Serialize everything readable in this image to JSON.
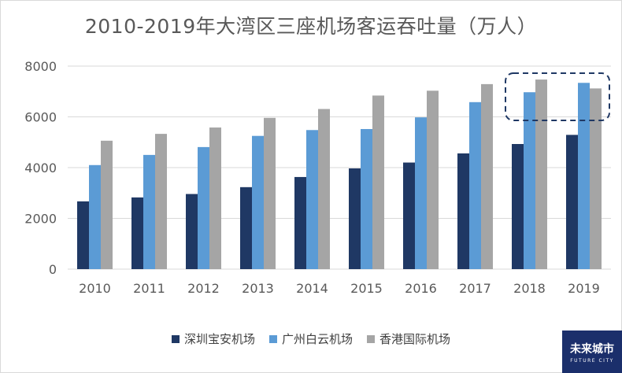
{
  "title": "2010-2019年大湾区三座机场客运吞吐量（万人）",
  "logo": {
    "text": "未来城市",
    "subtext": "FUTURE CITY"
  },
  "colors": {
    "series1": "#1f3864",
    "series2": "#5b9bd5",
    "series3": "#a5a5a5",
    "grid": "#d9d9d9",
    "highlight": "#1f3864"
  },
  "chart_data": {
    "type": "bar",
    "title": "2010-2019年大湾区三座机场客运吞吐量（万人）",
    "xlabel": "",
    "ylabel": "",
    "ylim": [
      0,
      8000
    ],
    "yticks": [
      0,
      2000,
      4000,
      6000,
      8000
    ],
    "grid": true,
    "legend_position": "bottom",
    "categories": [
      "2010",
      "2011",
      "2012",
      "2013",
      "2014",
      "2015",
      "2016",
      "2017",
      "2018",
      "2019"
    ],
    "series": [
      {
        "name": "深圳宝安机场",
        "values": [
          2670,
          2825,
          2960,
          3230,
          3630,
          3970,
          4200,
          4560,
          4930,
          5290
        ]
      },
      {
        "name": "广州白云机场",
        "values": [
          4100,
          4500,
          4810,
          5250,
          5480,
          5520,
          5980,
          6580,
          6970,
          7340
        ]
      },
      {
        "name": "香港国际机场",
        "values": [
          5060,
          5330,
          5580,
          5960,
          6310,
          6840,
          7030,
          7290,
          7470,
          7120
        ]
      }
    ],
    "highlight_categories": [
      "2018",
      "2019"
    ]
  }
}
